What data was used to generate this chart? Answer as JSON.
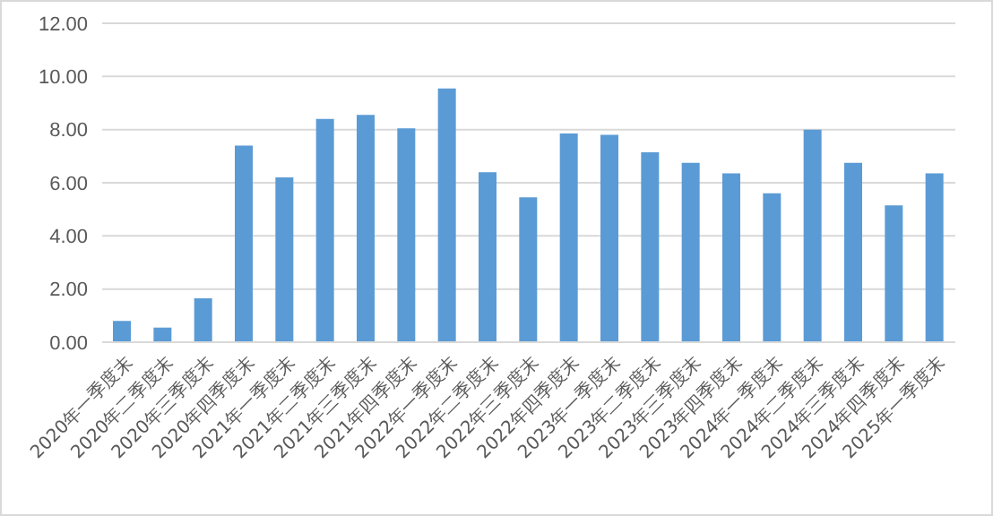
{
  "chart_data": {
    "type": "bar",
    "categories": [
      "2020年一季度末",
      "2020年二季度末",
      "2020年三季度末",
      "2020年四季度末",
      "2021年一季度末",
      "2021年二季度末",
      "2021年三季度末",
      "2021年四季度末",
      "2022年一季度末",
      "2022年二季度末",
      "2022年三季度末",
      "2022年四季度末",
      "2023年一季度末",
      "2023年二季度末",
      "2023年三季度末",
      "2023年四季度末",
      "2024年一季度末",
      "2024年二季度末",
      "2024年三季度末",
      "2024年四季度末",
      "2025年一季度末"
    ],
    "values": [
      0.8,
      0.55,
      1.65,
      7.4,
      6.2,
      8.4,
      8.55,
      8.05,
      9.55,
      6.4,
      5.45,
      7.85,
      7.8,
      7.15,
      6.75,
      6.35,
      5.6,
      8.0,
      6.75,
      5.15,
      6.35
    ],
    "color": "#5b9bd5",
    "ylim": [
      0,
      12
    ],
    "yticks": [
      {
        "value": 0,
        "label": "0.00"
      },
      {
        "value": 2,
        "label": "2.00"
      },
      {
        "value": 4,
        "label": "4.00"
      },
      {
        "value": 6,
        "label": "6.00"
      },
      {
        "value": 8,
        "label": "8.00"
      },
      {
        "value": 10,
        "label": "10.00"
      },
      {
        "value": 12,
        "label": "12.00"
      }
    ],
    "grid": "y"
  }
}
